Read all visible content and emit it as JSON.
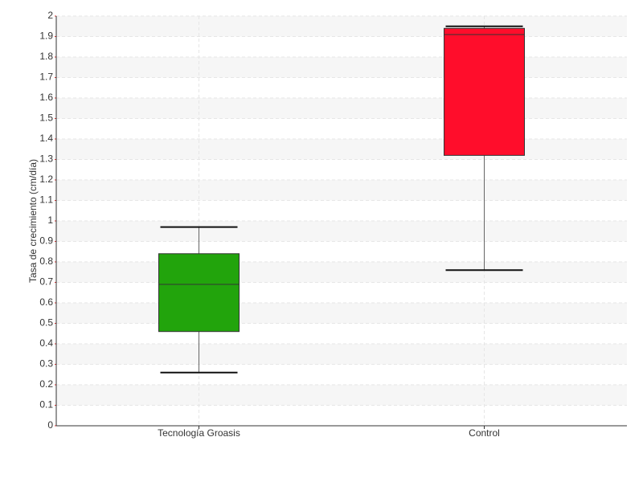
{
  "chart_data": {
    "type": "box",
    "ylabel": "Tasa de crecimiento (cm/día)",
    "categories": [
      "Tecnología Groasis",
      "Control"
    ],
    "boxes": [
      {
        "min": 0.26,
        "q1": 0.46,
        "median": 0.69,
        "q3": 0.84,
        "max": 0.97,
        "color": "#22a40c"
      },
      {
        "min": 0.76,
        "q1": 1.32,
        "median": 1.91,
        "q3": 1.94,
        "max": 1.95,
        "color": "#ff0d2b"
      }
    ],
    "ylim": [
      0,
      2
    ],
    "yticks": [
      0,
      0.1,
      0.2,
      0.3,
      0.4,
      0.5,
      0.6,
      0.7,
      0.8,
      0.9,
      1,
      1.1,
      1.2,
      1.3,
      1.4,
      1.5,
      1.6,
      1.7,
      1.8,
      1.9,
      2
    ],
    "grid": true
  }
}
